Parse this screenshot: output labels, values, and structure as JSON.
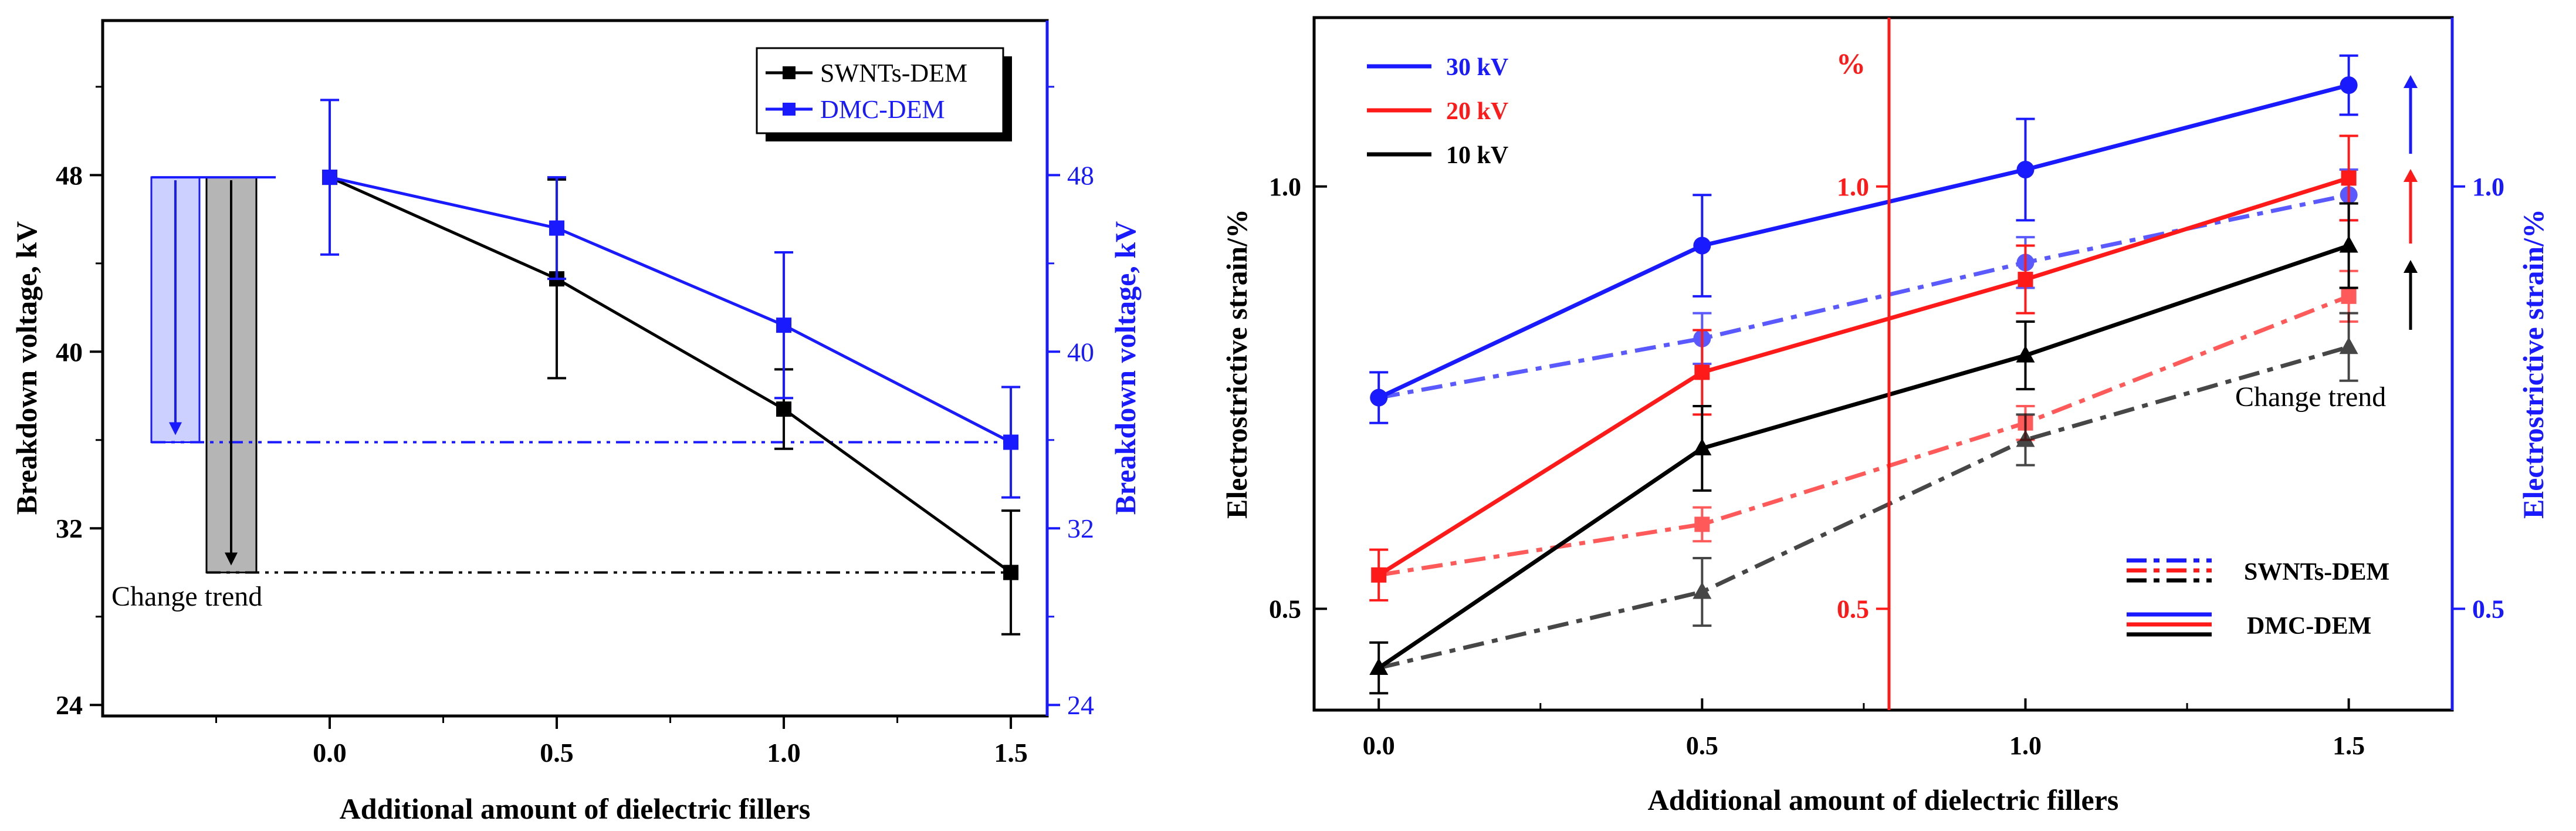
{
  "chart_data": [
    {
      "type": "line",
      "xlabel": "Additional amount of dielectric fillers",
      "ylabel_left": "Breakdown voltage, kV",
      "ylabel_right": "Breakdown voltage, kV",
      "x_ticks": [
        "0.0",
        "0.5",
        "1.0",
        "1.5"
      ],
      "y_ticks_left": [
        "24",
        "32",
        "40",
        "48"
      ],
      "y_ticks_right": [
        "24",
        "32",
        "40",
        "48"
      ],
      "xlim": [
        -0.5,
        1.58
      ],
      "ylim": [
        23.5,
        55
      ],
      "x": [
        0.0,
        0.5,
        1.0,
        1.5
      ],
      "series": [
        {
          "name": "SWNTs-DEM",
          "color": "#000000",
          "values": [
            47.9,
            43.3,
            37.4,
            30.0
          ],
          "err": [
            0,
            4.5,
            1.8,
            2.8
          ]
        },
        {
          "name": "DMC-DEM",
          "color": "#1a1aff",
          "values": [
            47.9,
            45.6,
            41.2,
            35.9
          ],
          "err": [
            3.5,
            2.3,
            3.3,
            2.5
          ]
        }
      ],
      "reference_levels": {
        "black": 30.0,
        "blue": 35.9
      },
      "annotation": "Change trend",
      "legend_position": "top-right",
      "grid": false
    },
    {
      "type": "line",
      "xlabel": "Additional amount of dielectric fillers",
      "ylabel_left": "Electrostrictive strain/%",
      "ylabel_right": "Electrostrictive strain/%",
      "middle_axis_label": "%",
      "x_ticks": [
        "0.0",
        "0.5",
        "1.0",
        "1.5"
      ],
      "y_ticks_left": [
        "0.5",
        "1.0"
      ],
      "y_ticks_middle": [
        "0.5",
        "1.0"
      ],
      "y_ticks_right": [
        "0.5",
        "1.0"
      ],
      "xlim": [
        -0.1,
        1.66
      ],
      "ylim": [
        0.38,
        1.2
      ],
      "x": [
        0.0,
        0.5,
        1.0,
        1.5
      ],
      "series": [
        {
          "name": "30 kV",
          "filler": "DMC-DEM",
          "color": "#1a1aff",
          "dash": "solid",
          "marker": "circle",
          "values": [
            0.75,
            0.93,
            1.02,
            1.12
          ],
          "err": [
            0.03,
            0.06,
            0.06,
            0.035
          ]
        },
        {
          "name": "20 kV",
          "filler": "DMC-DEM",
          "color": "#ff1a1a",
          "dash": "solid",
          "marker": "square",
          "values": [
            0.54,
            0.78,
            0.89,
            1.01
          ],
          "err": [
            0.03,
            0.05,
            0.04,
            0.05
          ]
        },
        {
          "name": "10 kV",
          "filler": "DMC-DEM",
          "color": "#000000",
          "dash": "solid",
          "marker": "triangle",
          "values": [
            0.43,
            0.69,
            0.8,
            0.93
          ],
          "err": [
            0.03,
            0.05,
            0.04,
            0.05
          ]
        },
        {
          "filler": "SWNTs-DEM",
          "color": "#1a1aff",
          "dash": "dashdot",
          "marker": "circle",
          "values": [
            0.75,
            0.82,
            0.91,
            0.99
          ],
          "err": [
            0.0,
            0.03,
            0.03,
            0.03
          ]
        },
        {
          "filler": "SWNTs-DEM",
          "color": "#ff1a1a",
          "dash": "dashdot",
          "marker": "square",
          "values": [
            0.54,
            0.6,
            0.72,
            0.87
          ],
          "err": [
            0.0,
            0.02,
            0.02,
            0.03
          ]
        },
        {
          "filler": "SWNTs-DEM",
          "color": "#000000",
          "dash": "dashdot",
          "marker": "triangle",
          "values": [
            0.43,
            0.52,
            0.7,
            0.81
          ],
          "err": [
            0.0,
            0.04,
            0.03,
            0.04
          ]
        }
      ],
      "legend_voltage": [
        "30 kV",
        "20 kV",
        "10 kV"
      ],
      "legend_filler": [
        "SWNTs-DEM",
        "DMC-DEM"
      ],
      "annotation": "Change trend",
      "grid": false
    }
  ],
  "colors": {
    "blue": "#1a1aff",
    "red": "#ff1a1a",
    "black": "#000000",
    "shade_blue": "#ccd0ff",
    "shade_gray": "#b5b5b5"
  }
}
